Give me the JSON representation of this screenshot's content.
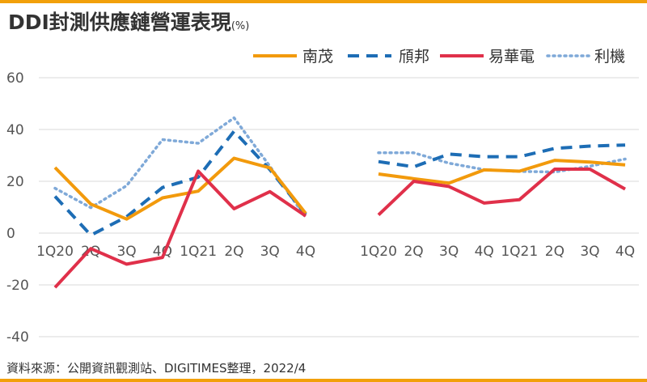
{
  "page": {
    "title": "DDI封測供應鏈營運表現",
    "title_unit": "(%)",
    "source": "資料來源：公開資訊觀測站、DIGITIMES整理，2022/4"
  },
  "chart_data": [
    {
      "type": "line",
      "categories": [
        "1Q20",
        "2Q",
        "3Q",
        "4Q",
        "1Q21",
        "2Q",
        "3Q",
        "4Q"
      ],
      "ylim": [
        -40,
        60
      ],
      "yticks": [
        -40,
        -20,
        0,
        20,
        40,
        60
      ],
      "grid": true,
      "legend": "top-right",
      "series": [
        {
          "name": "南茂",
          "color": "#f29a0c",
          "style": "solid",
          "values": [
            25.3,
            11.2,
            5.4,
            13.6,
            16.2,
            28.9,
            25.2,
            7.6
          ]
        },
        {
          "name": "頎邦",
          "color": "#1d6db5",
          "style": "dashed",
          "values": [
            14.2,
            -0.8,
            6.3,
            17.6,
            21.6,
            39.3,
            24.5,
            7.2
          ]
        },
        {
          "name": "易華電",
          "color": "#e0304a",
          "style": "solid",
          "values": [
            -21.0,
            -6.0,
            -12.0,
            -9.4,
            23.9,
            9.4,
            16.0,
            6.6
          ]
        },
        {
          "name": "利機",
          "color": "#7fa9d8",
          "style": "dotted",
          "values": [
            17.3,
            9.8,
            18.3,
            36.1,
            34.7,
            44.5,
            25.8,
            6.0
          ]
        }
      ]
    },
    {
      "type": "line",
      "categories": [
        "1Q20",
        "2Q",
        "3Q",
        "4Q",
        "1Q21",
        "2Q",
        "3Q",
        "4Q"
      ],
      "ylim": [
        -40,
        60
      ],
      "series": [
        {
          "name": "南茂",
          "values": [
            22.8,
            21.0,
            19.3,
            24.4,
            23.9,
            28.1,
            27.4,
            26.3
          ]
        },
        {
          "name": "頎邦",
          "values": [
            27.6,
            25.6,
            30.5,
            29.5,
            29.5,
            32.7,
            33.6,
            34.0
          ]
        },
        {
          "name": "易華電",
          "values": [
            7.0,
            20.0,
            18.0,
            11.6,
            12.9,
            24.7,
            24.7,
            17.0
          ]
        },
        {
          "name": "利機",
          "values": [
            31.0,
            31.0,
            27.0,
            24.5,
            23.8,
            23.6,
            25.8,
            28.6
          ]
        }
      ]
    }
  ]
}
